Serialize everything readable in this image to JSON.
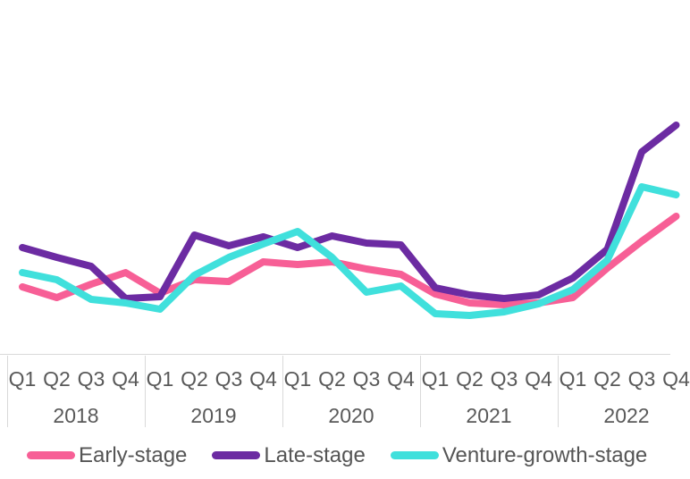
{
  "chart_data": {
    "type": "line",
    "title": "",
    "xlabel": "",
    "ylabel": "",
    "y_axis_visible": false,
    "grid": false,
    "legend_position": "bottom",
    "note": "No y-axis is displayed in the chart; series values are relative index units estimated from line positions (axis baseline = 0).",
    "x": {
      "years": [
        "2018",
        "2019",
        "2020",
        "2021",
        "2022"
      ],
      "quarters_per_year": [
        "Q1",
        "Q2",
        "Q3",
        "Q4"
      ],
      "categories": [
        "2018 Q1",
        "2018 Q2",
        "2018 Q3",
        "2018 Q4",
        "2019 Q1",
        "2019 Q2",
        "2019 Q3",
        "2019 Q4",
        "2020 Q1",
        "2020 Q2",
        "2020 Q3",
        "2020 Q4",
        "2021 Q1",
        "2021 Q2",
        "2021 Q3",
        "2021 Q4",
        "2022 Q1",
        "2022 Q2",
        "2022 Q3",
        "2022 Q4"
      ]
    },
    "series": [
      {
        "name": "Early-stage",
        "color": "#f75f96",
        "values": [
          75,
          63,
          78,
          91,
          68,
          83,
          81,
          103,
          100,
          103,
          95,
          89,
          67,
          57,
          55,
          57,
          63,
          96,
          126,
          154
        ]
      },
      {
        "name": "Late-stage",
        "color": "#6c2ba2",
        "values": [
          119,
          108,
          98,
          62,
          64,
          133,
          121,
          131,
          119,
          132,
          124,
          122,
          74,
          66,
          62,
          66,
          85,
          117,
          226,
          256
        ]
      },
      {
        "name": "Venture-growth-stage",
        "color": "#40e0dc",
        "values": [
          91,
          83,
          61,
          57,
          50,
          88,
          108,
          123,
          137,
          108,
          69,
          76,
          45,
          43,
          47,
          56,
          72,
          105,
          187,
          178
        ]
      }
    ]
  },
  "legend": {
    "items": [
      {
        "label": "Early-stage",
        "color": "#f75f96"
      },
      {
        "label": "Late-stage",
        "color": "#6c2ba2"
      },
      {
        "label": "Venture-growth-stage",
        "color": "#40e0dc"
      }
    ]
  },
  "colors": {
    "axis_text": "#595959",
    "legend_text": "#555555",
    "grid_line": "#d9d9d9",
    "background": "#ffffff"
  }
}
